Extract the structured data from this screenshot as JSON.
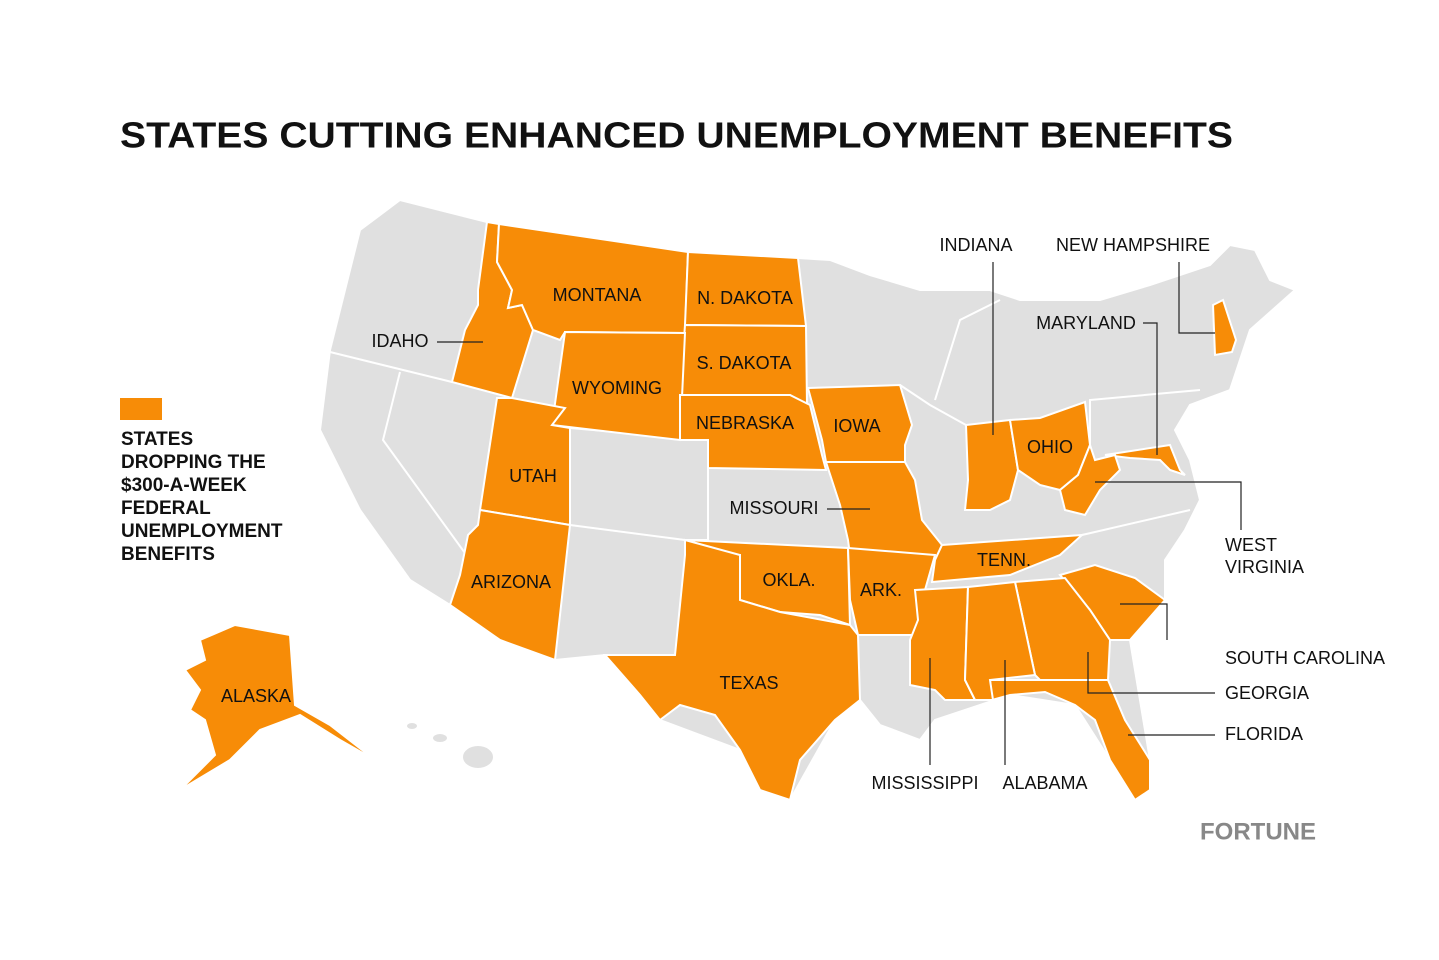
{
  "title": "STATES CUTTING ENHANCED UNEMPLOYMENT BENEFITS",
  "legend": {
    "color": "#f78c07",
    "lines": [
      "STATES",
      "DROPPING THE",
      "$300-A-WEEK",
      "FEDERAL",
      "UNEMPLOYMENT",
      "BENEFITS"
    ]
  },
  "states": [
    {
      "label": "IDAHO"
    },
    {
      "label": "MONTANA"
    },
    {
      "label": "N. DAKOTA"
    },
    {
      "label": "S. DAKOTA"
    },
    {
      "label": "WYOMING"
    },
    {
      "label": "NEBRASKA"
    },
    {
      "label": "IOWA"
    },
    {
      "label": "UTAH"
    },
    {
      "label": "MISSOURI"
    },
    {
      "label": "ARIZONA"
    },
    {
      "label": "OKLA."
    },
    {
      "label": "ARK."
    },
    {
      "label": "TEXAS"
    },
    {
      "label": "TENN."
    },
    {
      "label": "ALASKA"
    },
    {
      "label": "INDIANA"
    },
    {
      "label": "NEW HAMPSHIRE"
    },
    {
      "label": "MARYLAND"
    },
    {
      "label": "OHIO"
    },
    {
      "label": "WEST VIRGINIA"
    },
    {
      "label": "SOUTH CAROLINA"
    },
    {
      "label": "GEORGIA"
    },
    {
      "label": "FLORIDA"
    },
    {
      "label": "MISSISSIPPI"
    },
    {
      "label": "ALABAMA"
    }
  ],
  "brand": "FORTUNE"
}
